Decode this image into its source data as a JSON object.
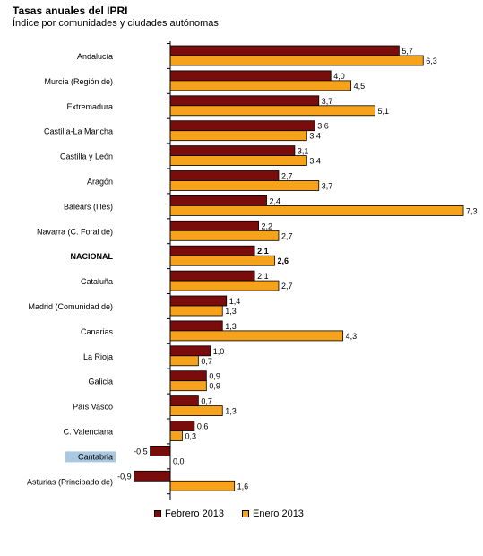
{
  "chart_data": {
    "type": "bar",
    "orientation": "horizontal",
    "title": "Tasas anuales del IPRI",
    "subtitle": "Índice por comunidades y ciudades autónomas",
    "categories": [
      "Andalucía",
      "Murcia (Región de)",
      "Extremadura",
      "Castilla-La Mancha",
      "Castilla y León",
      "Aragón",
      "Balears (Illes)",
      "Navarra (C. Foral de)",
      "NACIONAL",
      "Cataluña",
      "Madrid (Comunidad de)",
      "Canarias",
      "La Rioja",
      "Galicia",
      "País Vasco",
      "C. Valenciana",
      "Cantabria",
      "Asturias (Principado de)"
    ],
    "highlighted_category": "Cantabria",
    "bold_category": "NACIONAL",
    "series": [
      {
        "name": "Febrero 2013",
        "color": "#7b0c0c",
        "values": [
          5.7,
          4.0,
          3.7,
          3.6,
          3.1,
          2.7,
          2.4,
          2.2,
          2.1,
          2.1,
          1.4,
          1.3,
          1.0,
          0.9,
          0.7,
          0.6,
          -0.5,
          -0.9
        ],
        "labels": [
          "5,7",
          "4,0",
          "3,7",
          "3,6",
          "3,1",
          "2,7",
          "2,4",
          "2,2",
          "2,1",
          "2,1",
          "1,4",
          "1,3",
          "1,0",
          "0,9",
          "0,7",
          "0,6",
          "-0,5",
          "-0,9"
        ]
      },
      {
        "name": "Enero 2013",
        "color": "#f7a21b",
        "values": [
          6.3,
          4.5,
          5.1,
          3.4,
          3.4,
          3.7,
          7.3,
          2.7,
          2.6,
          2.7,
          1.3,
          4.3,
          0.7,
          0.9,
          1.3,
          0.3,
          0.0,
          1.6
        ],
        "labels": [
          "6,3",
          "4,5",
          "5,1",
          "3,4",
          "3,4",
          "3,7",
          "7,3",
          "2,7",
          "2,6",
          "2,7",
          "1,3",
          "4,3",
          "0,7",
          "0,9",
          "1,3",
          "0,3",
          "0,0",
          "1,6"
        ]
      }
    ],
    "highlight_color": "#a9c8e2",
    "grid": false,
    "legend_position": "bottom"
  }
}
